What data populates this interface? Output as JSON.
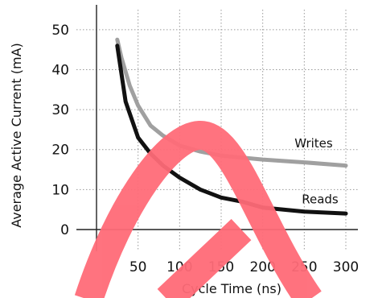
{
  "chart_data": {
    "type": "line",
    "title": "",
    "xlabel": "Cycle Time (ns)",
    "ylabel": "Average Active Current (mA)",
    "xlim": [
      0,
      300
    ],
    "ylim": [
      0,
      55
    ],
    "x_ticks": [
      50,
      100,
      150,
      200,
      250,
      300
    ],
    "y_ticks": [
      0,
      10,
      20,
      30,
      40,
      50
    ],
    "grid": true,
    "grid_style": "dotted",
    "legend": "inline labels",
    "series": [
      {
        "name": "Writes",
        "color": "#a0a0a0",
        "points": [
          [
            25,
            47.5
          ],
          [
            30,
            43
          ],
          [
            40,
            36
          ],
          [
            50,
            31
          ],
          [
            65,
            26
          ],
          [
            80,
            23.5
          ],
          [
            100,
            21
          ],
          [
            125,
            19.5
          ],
          [
            150,
            18.5
          ],
          [
            200,
            17.5
          ],
          [
            250,
            16.8
          ],
          [
            300,
            16
          ]
        ]
      },
      {
        "name": "Reads",
        "color": "#111111",
        "points": [
          [
            25,
            46
          ],
          [
            35,
            32
          ],
          [
            50,
            23
          ],
          [
            65,
            19
          ],
          [
            80,
            16
          ],
          [
            100,
            13
          ],
          [
            125,
            10
          ],
          [
            150,
            8
          ],
          [
            175,
            7
          ],
          [
            200,
            5.5
          ],
          [
            250,
            4.5
          ],
          [
            300,
            4
          ]
        ]
      }
    ]
  },
  "colors": {
    "background": "#ffffff",
    "grid": "#9a9a9a",
    "axis": "#222222",
    "watermark": "#ff6b78"
  }
}
